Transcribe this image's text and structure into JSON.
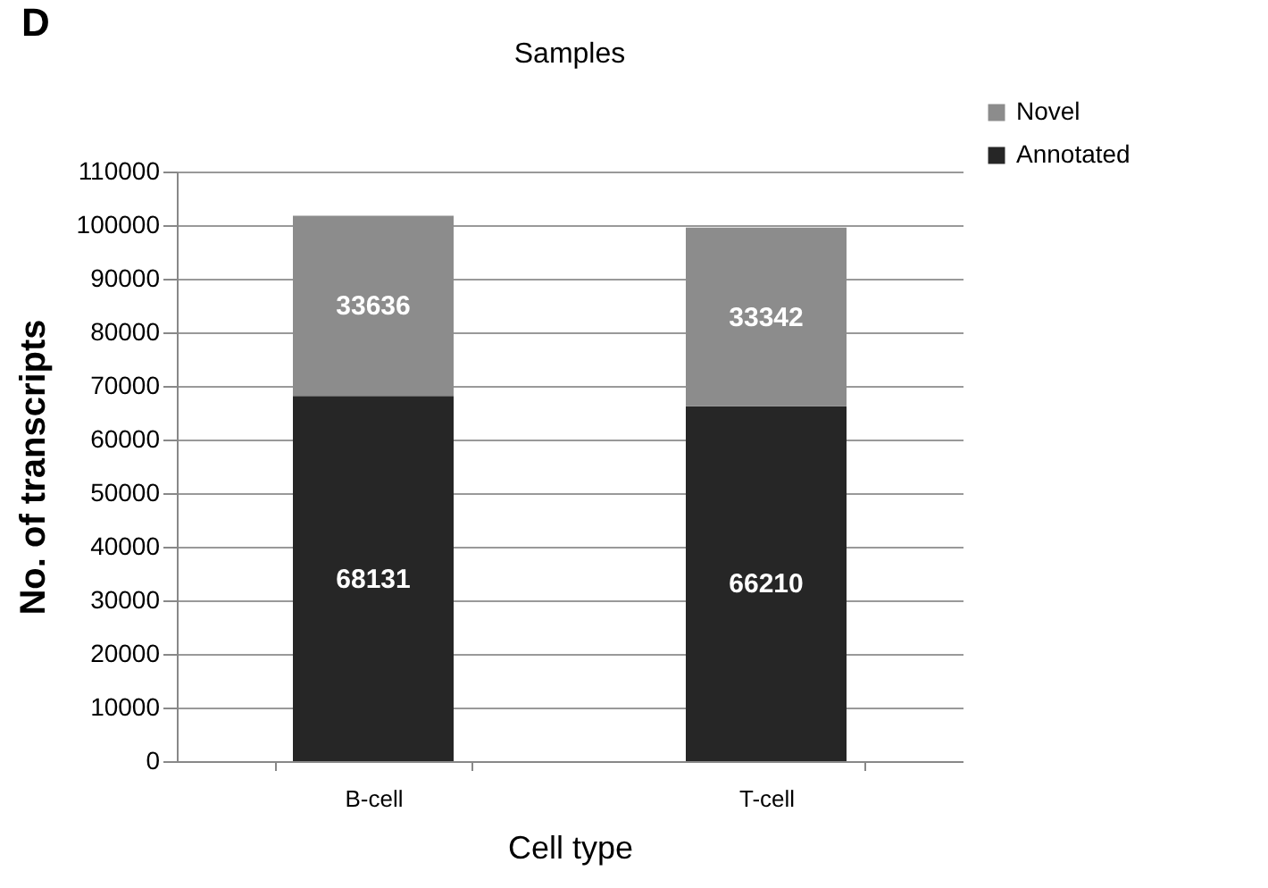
{
  "chart_data": {
    "type": "bar",
    "title": "Samples",
    "xlabel": "Cell type",
    "ylabel": "No.  of transcripts",
    "annotations": [
      "D"
    ],
    "categories": [
      "B-cell",
      "T-cell"
    ],
    "series": [
      {
        "name": "Annotated",
        "color": "#262626",
        "values": [
          68131,
          66210
        ]
      },
      {
        "name": "Novel",
        "color": "#8c8c8c",
        "values": [
          33636,
          33342
        ]
      }
    ],
    "stacked": true,
    "data_labels": true,
    "ylim": [
      0,
      110000
    ],
    "yticks": [
      0,
      10000,
      20000,
      30000,
      40000,
      50000,
      60000,
      70000,
      80000,
      90000,
      100000,
      110000
    ],
    "grid": "y",
    "legend": "top right"
  }
}
